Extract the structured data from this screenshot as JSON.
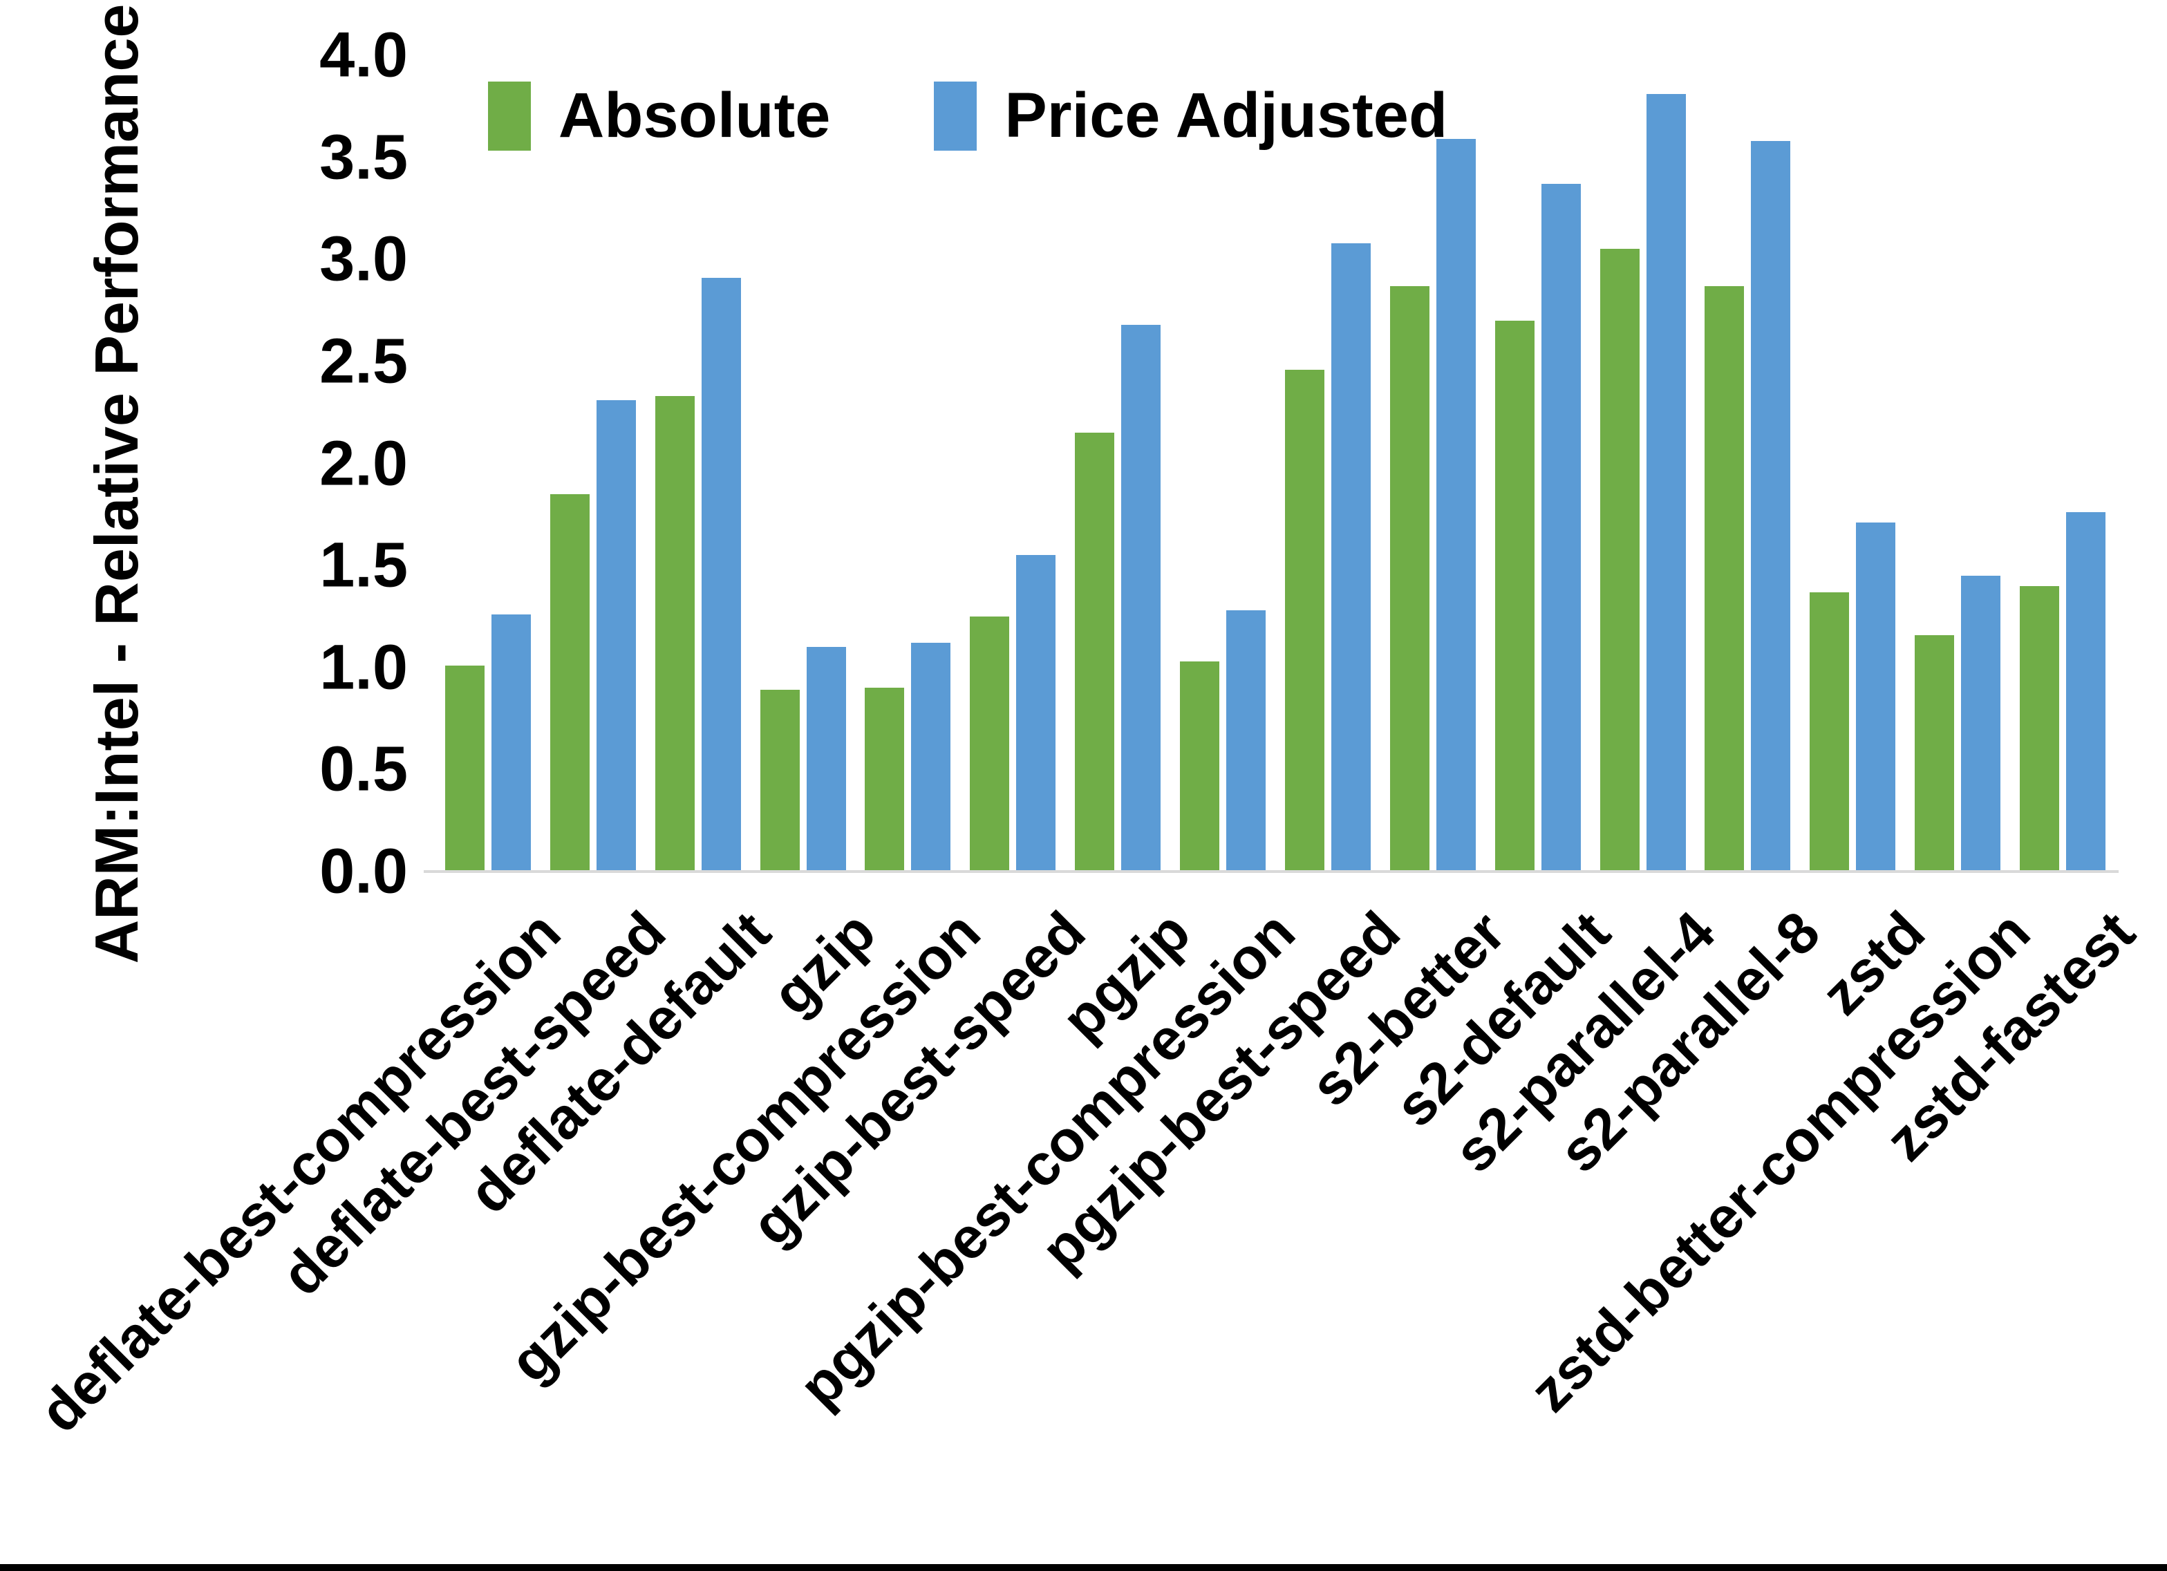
{
  "chart_data": {
    "type": "bar",
    "title": "",
    "xlabel": "",
    "ylabel": "ARM:Intel - Relative Performance",
    "ylim": [
      0.0,
      4.0
    ],
    "ytick_step": 0.5,
    "yticks": [
      "0.0",
      "0.5",
      "1.0",
      "1.5",
      "2.0",
      "2.5",
      "3.0",
      "3.5",
      "4.0"
    ],
    "grid": false,
    "legend_position": "top-center",
    "categories": [
      "deflate-best-compression",
      "deflate-best-speed",
      "deflate-default",
      "gzip",
      "gzip-best-compression",
      "gzip-best-speed",
      "pgzip",
      "pgzip-best-compression",
      "pgzip-best-speed",
      "s2-better",
      "s2-default",
      "s2-parallel-4",
      "s2-parallel-8",
      "zstd",
      "zstd-better-compression",
      "zstd-fastest"
    ],
    "series": [
      {
        "name": "Absolute",
        "color": "#70AD47",
        "values": [
          1.01,
          1.85,
          2.33,
          0.89,
          0.9,
          1.25,
          2.15,
          1.03,
          2.46,
          2.87,
          2.7,
          3.05,
          2.87,
          1.37,
          1.16,
          1.4
        ]
      },
      {
        "name": "Price Adjusted",
        "color": "#5B9BD5",
        "values": [
          1.26,
          2.31,
          2.91,
          1.1,
          1.12,
          1.55,
          2.68,
          1.28,
          3.08,
          3.59,
          3.37,
          3.81,
          3.58,
          1.71,
          1.45,
          1.76
        ]
      }
    ],
    "axis_line_color": "#d9d9d9",
    "text_color": "#000000"
  }
}
